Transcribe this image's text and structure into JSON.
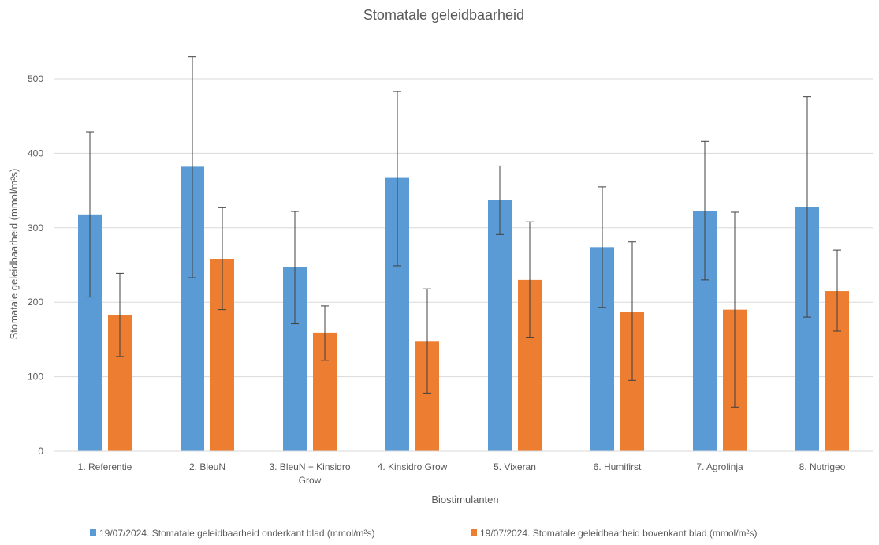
{
  "chart_data": {
    "type": "bar",
    "title": "Stomatale geleidbaarheid",
    "xlabel": "Biostimulanten",
    "ylabel": "Stomatale geleidbaarheid (mmol/m²s)",
    "ylim": [
      0,
      500
    ],
    "yticks": [
      0,
      100,
      200,
      300,
      400,
      500
    ],
    "grid": true,
    "legend_position": "bottom",
    "categories": [
      [
        "1. Referentie"
      ],
      [
        "2. BleuN"
      ],
      [
        "3.  BleuN + Kinsidro",
        "Grow"
      ],
      [
        "4. Kinsidro Grow"
      ],
      [
        "5. Vixeran"
      ],
      [
        "6. Humifirst"
      ],
      [
        "7. Agrolinja"
      ],
      [
        "8. Nutrigeo"
      ]
    ],
    "series": [
      {
        "name": "19/07/2024. Stomatale geleidbaarheid onderkant blad (mmol/m²s)",
        "color": "#5b9bd5",
        "values": [
          318,
          382,
          247,
          367,
          337,
          274,
          323,
          328
        ],
        "error_low": [
          207,
          233,
          171,
          249,
          291,
          193,
          230,
          180
        ],
        "error_high": [
          429,
          530,
          322,
          483,
          383,
          355,
          416,
          476
        ]
      },
      {
        "name": "19/07/2024. Stomatale geleidbaarheid bovenkant blad (mmol/m²s)",
        "color": "#ed7d31",
        "values": [
          183,
          258,
          159,
          148,
          230,
          187,
          190,
          215
        ],
        "error_low": [
          127,
          190,
          122,
          78,
          153,
          95,
          59,
          161
        ],
        "error_high": [
          239,
          327,
          195,
          218,
          308,
          281,
          321,
          270
        ]
      }
    ]
  }
}
